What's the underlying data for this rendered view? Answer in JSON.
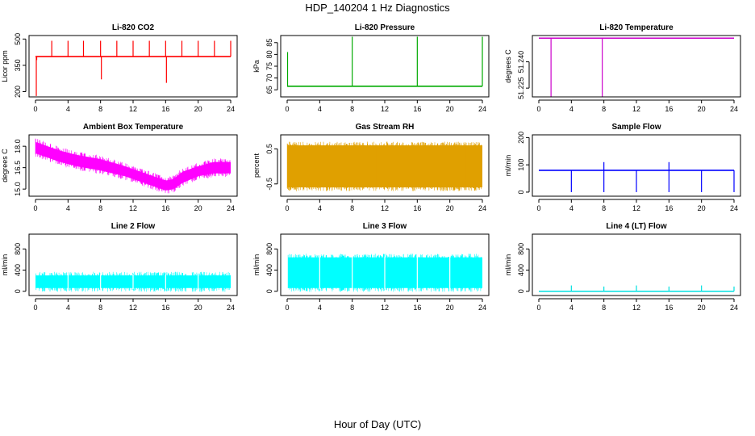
{
  "figure": {
    "title": "HDP_140204  1 Hz Diagnostics",
    "xlabel": "Hour of Day (UTC)"
  },
  "chart_data": [
    {
      "type": "line",
      "title": "Li-820 CO2",
      "ylabel": "Licor ppm",
      "color": "#ff0000",
      "xlim": [
        0,
        24
      ],
      "xticks": [
        0,
        4,
        8,
        12,
        16,
        20,
        24
      ],
      "ylim": [
        170,
        520
      ],
      "yticks": [
        200,
        350,
        500
      ],
      "baseline": 400,
      "spikes_up": [
        [
          0.15,
          380
        ],
        [
          2,
          490
        ],
        [
          4,
          490
        ],
        [
          5.9,
          490
        ],
        [
          8,
          490
        ],
        [
          10,
          490
        ],
        [
          12,
          490
        ],
        [
          14,
          490
        ],
        [
          16,
          490
        ],
        [
          18,
          490
        ],
        [
          20,
          490
        ],
        [
          22,
          490
        ],
        [
          24,
          490
        ]
      ],
      "spikes_down": [
        [
          0.1,
          175
        ],
        [
          8.1,
          270
        ],
        [
          16.1,
          250
        ]
      ]
    },
    {
      "type": "line",
      "title": "Li-820 Pressure",
      "ylabel": "kPa",
      "color": "#00aa00",
      "xlim": [
        0,
        24
      ],
      "xticks": [
        0,
        4,
        8,
        12,
        16,
        20,
        24
      ],
      "ylim": [
        62,
        88
      ],
      "yticks": [
        65,
        70,
        75,
        80,
        85
      ],
      "baseline": 66.5,
      "spikes_up": [
        [
          0.05,
          81
        ],
        [
          8,
          87.5
        ],
        [
          16,
          87.5
        ],
        [
          24,
          87.5
        ]
      ],
      "spikes_down": []
    },
    {
      "type": "line",
      "title": "Li-820 Temperature",
      "ylabel": "degrees C",
      "color": "#cc00cc",
      "xlim": [
        0,
        24
      ],
      "xticks": [
        0,
        4,
        8,
        12,
        16,
        20,
        24
      ],
      "ylim": [
        51.22,
        51.255
      ],
      "yticks": [
        51.225,
        51.24
      ],
      "ytick_labels": [
        "51.225",
        "51.240"
      ],
      "baseline": 51.2535,
      "spikes_up": [],
      "spikes_down": [
        [
          1.5,
          51.22
        ],
        [
          7.8,
          51.22
        ]
      ]
    },
    {
      "type": "area",
      "title": "Ambient Box Temperature",
      "ylabel": "degrees C",
      "color": "#ff00ff",
      "xlim": [
        0,
        24
      ],
      "xticks": [
        0,
        4,
        8,
        12,
        16,
        20,
        24
      ],
      "ylim": [
        14.5,
        18.8
      ],
      "yticks": [
        15.0,
        16.5,
        18.0
      ],
      "ytick_labels": [
        "15.0",
        "16.5",
        "18.0"
      ],
      "band": {
        "x": [
          0,
          1,
          3,
          5,
          8,
          11,
          14,
          16,
          17,
          18,
          20,
          22,
          24
        ],
        "low": [
          17.5,
          17.3,
          16.9,
          16.6,
          16.3,
          15.9,
          15.3,
          14.9,
          15.0,
          15.4,
          15.9,
          16.1,
          16.1
        ],
        "high": [
          18.3,
          18.1,
          17.7,
          17.4,
          17.1,
          16.6,
          16.0,
          15.6,
          15.7,
          16.2,
          16.6,
          16.9,
          16.9
        ]
      }
    },
    {
      "type": "area",
      "title": "Gas Stream RH",
      "ylabel": "percent",
      "color": "#e0a000",
      "xlim": [
        0,
        24
      ],
      "xticks": [
        0,
        4,
        8,
        12,
        16,
        20,
        24
      ],
      "ylim": [
        -0.85,
        0.9
      ],
      "yticks": [
        -0.5,
        0.5
      ],
      "band": {
        "x": [
          0,
          24
        ],
        "low": [
          -0.6,
          -0.6
        ],
        "high": [
          0.6,
          0.6
        ]
      }
    },
    {
      "type": "line",
      "title": "Sample Flow",
      "ylabel": "ml/min",
      "color": "#0000ff",
      "xlim": [
        0,
        24
      ],
      "xticks": [
        0,
        4,
        8,
        12,
        16,
        20,
        24
      ],
      "ylim": [
        -15,
        210
      ],
      "yticks": [
        0,
        100,
        200
      ],
      "baseline": 80,
      "spikes_up": [
        [
          8,
          110
        ],
        [
          16,
          110
        ]
      ],
      "spikes_down": [
        [
          4,
          0
        ],
        [
          8,
          0
        ],
        [
          12,
          0
        ],
        [
          16,
          0
        ],
        [
          20,
          0
        ],
        [
          24,
          0
        ]
      ]
    },
    {
      "type": "area",
      "title": "Line 2 Flow",
      "ylabel": "ml/min",
      "color": "#00ffff",
      "xlim": [
        0,
        24
      ],
      "xticks": [
        0,
        4,
        8,
        12,
        16,
        20,
        24
      ],
      "ylim": [
        -80,
        1080
      ],
      "yticks": [
        0,
        400,
        800
      ],
      "band": {
        "x": [
          0,
          24
        ],
        "low": [
          60,
          60
        ],
        "high": [
          300,
          300
        ]
      },
      "gaps": [
        4,
        8,
        12,
        16,
        20
      ]
    },
    {
      "type": "area",
      "title": "Line 3 Flow",
      "ylabel": "ml/min",
      "color": "#00ffff",
      "xlim": [
        0,
        24
      ],
      "xticks": [
        0,
        4,
        8,
        12,
        16,
        20,
        24
      ],
      "ylim": [
        -80,
        1080
      ],
      "yticks": [
        0,
        400,
        800
      ],
      "band": {
        "x": [
          0.1,
          24
        ],
        "low": [
          60,
          60
        ],
        "high": [
          640,
          640
        ]
      },
      "gaps": [
        4,
        8,
        12,
        16,
        20
      ]
    },
    {
      "type": "line",
      "title": "Line 4 (LT) Flow",
      "ylabel": "ml/min",
      "color": "#00e0e0",
      "xlim": [
        0,
        24
      ],
      "xticks": [
        0,
        4,
        8,
        12,
        16,
        20,
        24
      ],
      "ylim": [
        -80,
        1080
      ],
      "yticks": [
        0,
        400,
        800
      ],
      "baseline": 0,
      "spikes_up": [
        [
          4,
          110
        ],
        [
          8,
          90
        ],
        [
          12,
          110
        ],
        [
          16,
          90
        ],
        [
          20,
          110
        ],
        [
          24,
          90
        ]
      ],
      "spikes_down": []
    }
  ]
}
